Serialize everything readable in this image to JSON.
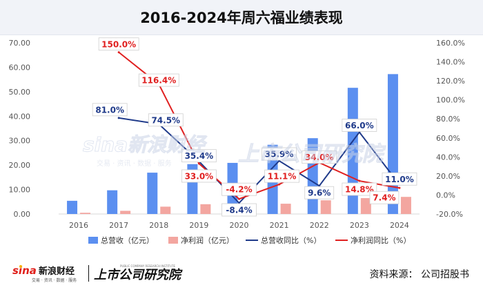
{
  "chart_data": {
    "type": "bar",
    "title": "2016-2024年周六福业绩表现",
    "categories": [
      "2016",
      "2017",
      "2018",
      "2019",
      "2020",
      "2021",
      "2022",
      "2023",
      "2024"
    ],
    "series": [
      {
        "name": "总营收（亿元）",
        "kind": "bar",
        "axis": "left",
        "color": "#5b8ff0",
        "values": [
          5.4,
          9.7,
          16.9,
          20.4,
          20.9,
          28.3,
          31.0,
          51.6,
          57.2
        ]
      },
      {
        "name": "净利润（亿元）",
        "kind": "bar",
        "axis": "left",
        "color": "#f3a6a0",
        "values": [
          0.5,
          1.3,
          3.0,
          4.0,
          3.7,
          4.2,
          5.6,
          6.5,
          7.0
        ]
      },
      {
        "name": "总营收同比（%）",
        "kind": "line",
        "axis": "right",
        "color": "#1f3a8a",
        "values": [
          null,
          81.0,
          74.5,
          35.4,
          -8.4,
          35.9,
          9.6,
          66.0,
          11.0
        ],
        "labels": [
          "",
          "81.0%",
          "74.5%",
          "35.4%",
          "-8.4%",
          "35.9%",
          "9.6%",
          "66.0%",
          "11.0%"
        ]
      },
      {
        "name": "净利润同比（%）",
        "kind": "line",
        "axis": "right",
        "color": "#e02020",
        "values": [
          null,
          150.0,
          116.4,
          33.0,
          -4.2,
          11.1,
          34.0,
          14.8,
          7.4
        ],
        "labels": [
          "",
          "150.0%",
          "116.4%",
          "33.0%",
          "-4.2%",
          "11.1%",
          "34.0%",
          "14.8%",
          "7.4%"
        ]
      }
    ],
    "ylim_left": [
      0,
      70
    ],
    "yticks_left": [
      "0.00",
      "10.00",
      "20.00",
      "30.00",
      "40.00",
      "50.00",
      "60.00",
      "70.00"
    ],
    "ylim_right": [
      -20,
      160
    ],
    "yticks_right": [
      "-20.0%",
      "0.0%",
      "20.0%",
      "40.0%",
      "60.0%",
      "80.0%",
      "100.0%",
      "120.0%",
      "140.0%",
      "160.0%"
    ],
    "grid": false,
    "legend_position": "bottom"
  },
  "source": "资料来源：   公司招股书",
  "watermark": {
    "sina_brand": "sina新浪财经",
    "sina_sub": "交易 · 资讯 · 数据 · 服务",
    "shangshi_brand": "上市公司研究院"
  }
}
